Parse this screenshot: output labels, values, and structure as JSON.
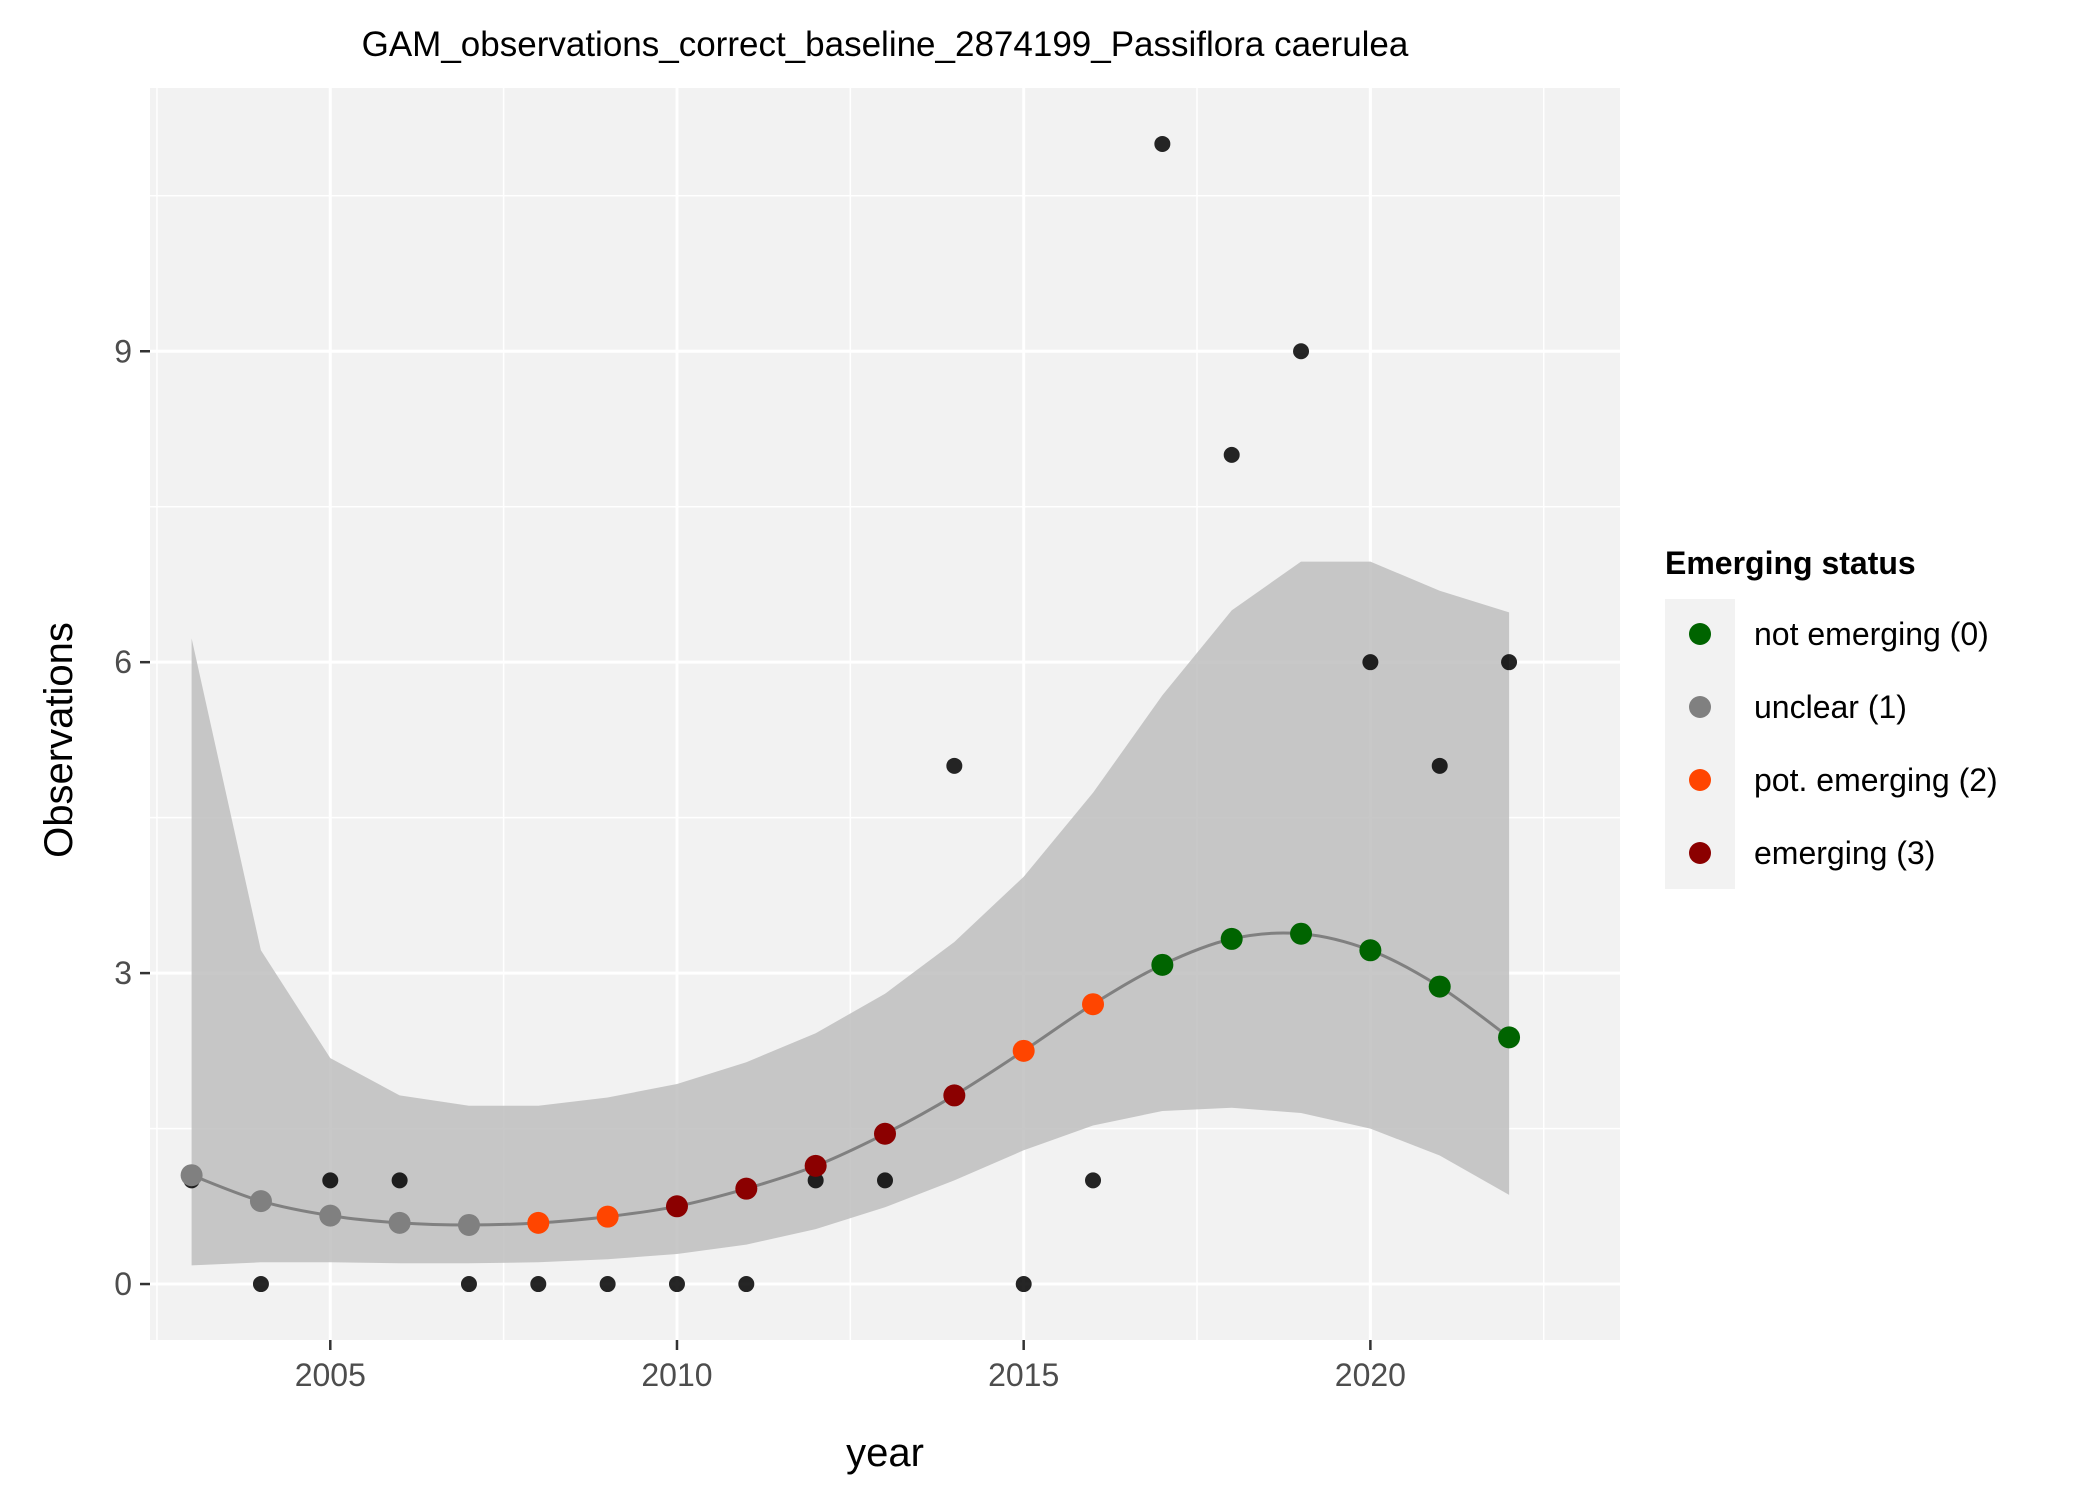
{
  "chart_data": {
    "type": "scatter",
    "title": "GAM_observations_correct_baseline_2874199_Passiflora caerulea",
    "xlabel": "year",
    "ylabel": "Observations",
    "xlim": [
      2002.4,
      2023.6
    ],
    "ylim": [
      -0.54,
      11.54
    ],
    "x_ticks": [
      2005,
      2010,
      2015,
      2020
    ],
    "y_ticks": [
      0,
      3,
      6,
      9
    ],
    "grid": true,
    "observations": {
      "x": [
        2003,
        2004,
        2005,
        2006,
        2007,
        2008,
        2009,
        2010,
        2011,
        2012,
        2013,
        2014,
        2015,
        2016,
        2017,
        2018,
        2019,
        2020,
        2021,
        2022
      ],
      "y": [
        1,
        0,
        1,
        1,
        0,
        0,
        0,
        0,
        0,
        1,
        1,
        5,
        0,
        1,
        11,
        8,
        9,
        6,
        5,
        6
      ],
      "color": "#000000"
    },
    "gam_fit": {
      "x": [
        2003,
        2004,
        2005,
        2006,
        2007,
        2008,
        2009,
        2010,
        2011,
        2012,
        2013,
        2014,
        2015,
        2016,
        2017,
        2018,
        2019,
        2020,
        2021,
        2022
      ],
      "y": [
        1.05,
        0.8,
        0.66,
        0.59,
        0.57,
        0.59,
        0.65,
        0.75,
        0.92,
        1.14,
        1.45,
        1.82,
        2.25,
        2.7,
        3.08,
        3.33,
        3.38,
        3.22,
        2.87,
        2.38
      ],
      "lower": [
        0.18,
        0.21,
        0.21,
        0.2,
        0.2,
        0.21,
        0.24,
        0.29,
        0.38,
        0.53,
        0.74,
        1.0,
        1.29,
        1.53,
        1.67,
        1.7,
        1.65,
        1.5,
        1.24,
        0.86
      ],
      "upper": [
        6.23,
        3.22,
        2.18,
        1.82,
        1.72,
        1.72,
        1.8,
        1.93,
        2.14,
        2.42,
        2.8,
        3.3,
        3.93,
        4.74,
        5.68,
        6.5,
        6.97,
        6.97,
        6.69,
        6.48
      ],
      "status": [
        1,
        1,
        1,
        1,
        1,
        2,
        2,
        3,
        3,
        3,
        3,
        3,
        2,
        2,
        0,
        0,
        0,
        0,
        0,
        0
      ],
      "line_color": "#808080",
      "band_color": "#bebebe"
    },
    "legend": {
      "title": "Emerging status",
      "placement": "right",
      "entries": [
        {
          "label": "not emerging (0)",
          "status": 0,
          "color": "#006400"
        },
        {
          "label": "unclear (1)",
          "status": 1,
          "color": "#808080"
        },
        {
          "label": "pot. emerging (2)",
          "status": 2,
          "color": "#FF4500"
        },
        {
          "label": "emerging (3)",
          "status": 3,
          "color": "#8B0000"
        }
      ]
    },
    "panel_background": "#f2f2f2",
    "gridline_color": "#ffffff"
  }
}
